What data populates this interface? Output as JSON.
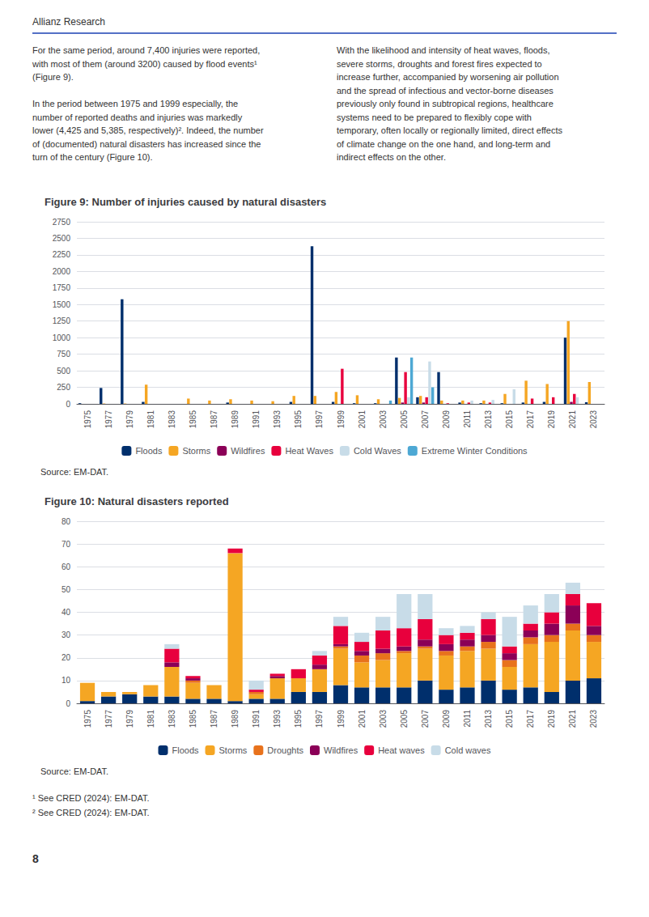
{
  "header_text": "Allianz Research",
  "body_left": "For the same period, around 7,400 injuries were reported,\nwith most of them (around 3200) caused by flood events¹\n(Figure 9).\n\nIn the period between 1975 and 1999 especially, the\nnumber of reported deaths and injuries was markedly\nlower (4,425 and 5,385, respectively)². Indeed, the number\nof (documented) natural disasters has increased since the\nturn of the century (Figure 10).",
  "body_right": "With the likelihood and intensity of heat waves, floods,\nsevere storms, droughts and forest fires expected to\nincrease further, accompanied by worsening air pollution\nand the spread of infectious and vector-borne diseases\npreviously only found in subtropical regions, healthcare\nsystems need to be prepared to flexibly cope with\ntemporary, often locally or regionally limited, direct effects\nof climate change on the one hand, and long-term and\nindirect effects on the other.",
  "footnotes": [
    "¹ See CRED (2024): EM-DAT.",
    "² See CRED (2024): EM-DAT."
  ],
  "page_number": "8",
  "chart_data": [
    {
      "type": "bar",
      "title": "Figure 9: Number of injuries caused by natural disasters",
      "annotations": [
        "Source: EM-DAT."
      ],
      "categories": [
        "1975",
        "1977",
        "1979",
        "1981",
        "1983",
        "1985",
        "1987",
        "1989",
        "1991",
        "1993",
        "1995",
        "1997",
        "1999",
        "2001",
        "2003",
        "2005",
        "2007",
        "2009",
        "2011",
        "2013",
        "2015",
        "2017",
        "2019",
        "2021",
        "2023"
      ],
      "series": [
        {
          "name": "Floods",
          "color": "#002F6C",
          "values": [
            10,
            240,
            1580,
            30,
            0,
            0,
            0,
            20,
            0,
            0,
            30,
            2380,
            30,
            10,
            10,
            700,
            100,
            480,
            20,
            10,
            10,
            20,
            30,
            1000,
            25
          ]
        },
        {
          "name": "Storms",
          "color": "#F5A623",
          "values": [
            0,
            5,
            5,
            290,
            0,
            80,
            50,
            70,
            50,
            40,
            120,
            120,
            180,
            130,
            70,
            90,
            120,
            50,
            50,
            50,
            150,
            350,
            300,
            1250,
            330
          ]
        },
        {
          "name": "Wildfires",
          "color": "#8B0057",
          "values": [
            0,
            0,
            0,
            0,
            0,
            0,
            0,
            0,
            0,
            0,
            0,
            0,
            0,
            0,
            0,
            20,
            20,
            0,
            0,
            0,
            0,
            0,
            0,
            30,
            0
          ]
        },
        {
          "name": "Heat Waves",
          "color": "#E8003D",
          "values": [
            0,
            0,
            0,
            0,
            0,
            0,
            0,
            0,
            0,
            0,
            0,
            0,
            530,
            0,
            0,
            480,
            100,
            10,
            20,
            20,
            0,
            80,
            100,
            150,
            0
          ]
        },
        {
          "name": "Cold Waves",
          "color": "#C8DCE8",
          "values": [
            0,
            0,
            0,
            0,
            0,
            0,
            0,
            0,
            0,
            0,
            0,
            0,
            0,
            0,
            0,
            100,
            640,
            0,
            50,
            60,
            220,
            0,
            0,
            100,
            0
          ]
        },
        {
          "name": "Extreme Winter Conditions",
          "color": "#4DA8D4",
          "values": [
            0,
            0,
            0,
            0,
            0,
            0,
            0,
            0,
            0,
            0,
            0,
            0,
            0,
            0,
            50,
            700,
            250,
            0,
            0,
            0,
            0,
            0,
            0,
            0,
            0
          ]
        }
      ],
      "ylim": [
        0,
        2750
      ],
      "yticks": [
        0,
        250,
        500,
        750,
        1000,
        1250,
        1500,
        1750,
        2000,
        2250,
        2500,
        2750
      ],
      "grid": true,
      "legend": "bottom"
    },
    {
      "type": "bar",
      "title": "Figure 10: Natural disasters reported",
      "annotations": [
        "Source: EM-DAT."
      ],
      "categories": [
        "1975",
        "1977",
        "1979",
        "1981",
        "1983",
        "1985",
        "1987",
        "1989",
        "1991",
        "1993",
        "1995",
        "1997",
        "1999",
        "2001",
        "2003",
        "2005",
        "2007",
        "2009",
        "2011",
        "2013",
        "2015",
        "2017",
        "2019",
        "2021",
        "2023"
      ],
      "series": [
        {
          "name": "Floods",
          "color": "#002F6C",
          "values": [
            1,
            3,
            4,
            3,
            3,
            2,
            2,
            1,
            2,
            2,
            5,
            5,
            8,
            7,
            7,
            7,
            10,
            6,
            7,
            10,
            6,
            7,
            5,
            10,
            11
          ]
        },
        {
          "name": "Storms",
          "color": "#F5A623",
          "values": [
            8,
            2,
            1,
            5,
            13,
            7,
            6,
            65,
            2,
            9,
            6,
            10,
            16,
            11,
            12,
            15,
            14,
            15,
            16,
            14,
            10,
            19,
            22,
            22,
            16
          ]
        },
        {
          "name": "Droughts",
          "color": "#E8721C",
          "values": [
            0,
            0,
            0,
            0,
            0,
            1,
            0,
            0,
            1,
            0,
            0,
            0,
            1,
            3,
            3,
            1,
            1,
            2,
            2,
            3,
            3,
            3,
            3,
            3,
            3
          ]
        },
        {
          "name": "Wildfires",
          "color": "#8B0057",
          "values": [
            0,
            0,
            0,
            0,
            2,
            1,
            0,
            0,
            0,
            1,
            0,
            2,
            1,
            2,
            2,
            2,
            3,
            3,
            3,
            3,
            3,
            3,
            5,
            8,
            4
          ]
        },
        {
          "name": "Heat waves",
          "color": "#E8003D",
          "values": [
            0,
            0,
            0,
            0,
            6,
            1,
            0,
            2,
            1,
            1,
            4,
            4,
            8,
            4,
            8,
            8,
            9,
            4,
            3,
            7,
            3,
            3,
            5,
            5,
            10
          ]
        },
        {
          "name": "Cold waves",
          "color": "#C8DCE8",
          "values": [
            0,
            0,
            0,
            0,
            2,
            0,
            0,
            0,
            4,
            0,
            0,
            2,
            4,
            4,
            6,
            15,
            11,
            3,
            3,
            3,
            13,
            8,
            8,
            5,
            0
          ]
        }
      ],
      "ylim": [
        0,
        80
      ],
      "yticks": [
        0,
        10,
        20,
        30,
        40,
        50,
        60,
        70,
        80
      ],
      "grid": true,
      "stacked": true,
      "legend": "bottom"
    }
  ]
}
